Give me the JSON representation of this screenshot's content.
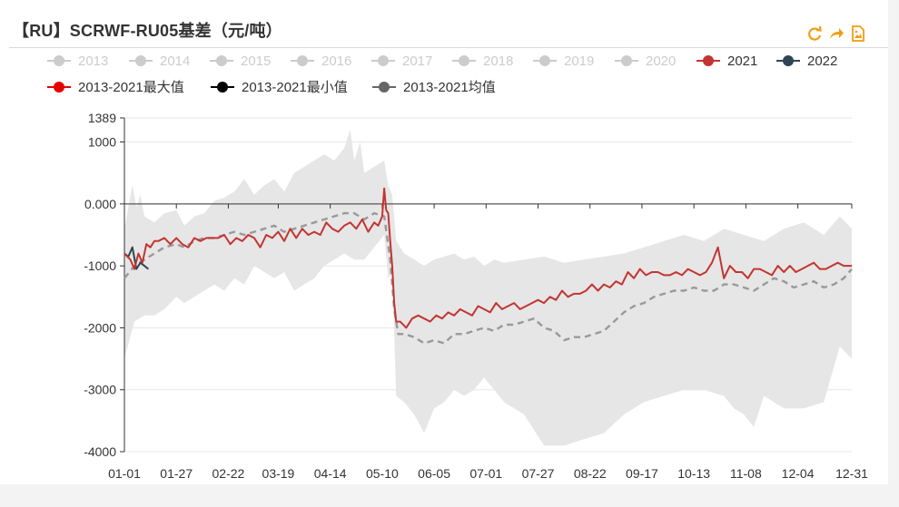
{
  "header": {
    "title": "【RU】SCRWF-RU05基差（元/吨）"
  },
  "toolbox": {
    "restore_icon": "refresh-icon",
    "data_view_icon": "share-arrow-icon",
    "save_icon": "save-image-icon",
    "color": "#f39c12"
  },
  "chart_data": {
    "type": "line",
    "title": "【RU】SCRWF-RU05基差（元/吨）",
    "xlabel": "",
    "ylabel": "",
    "ylim": [
      -4000,
      1389
    ],
    "yticks": [
      "1389",
      "1000",
      "0.000",
      "-1000",
      "-2000",
      "-3000",
      "-4000"
    ],
    "ytick_values": [
      1389,
      1000,
      0,
      -1000,
      -2000,
      -3000,
      -4000
    ],
    "xticks": [
      "01-01",
      "01-27",
      "02-22",
      "03-19",
      "04-14",
      "05-10",
      "06-05",
      "07-01",
      "07-27",
      "08-22",
      "09-17",
      "10-13",
      "11-08",
      "12-04",
      "12-31"
    ],
    "xtick_days": [
      0,
      26,
      52,
      77,
      103,
      129,
      155,
      181,
      207,
      233,
      259,
      285,
      311,
      337,
      364
    ],
    "grid": true,
    "legend_position": "top",
    "colors": {
      "inactive": "#cccccc",
      "s2021": "#c23531",
      "s2022": "#2f4554",
      "max": "#e60000",
      "min": "#000000",
      "mean": "#666666",
      "band": "#e6e6e6"
    },
    "legend": [
      {
        "name": "2013",
        "color": "#cccccc",
        "active": false
      },
      {
        "name": "2014",
        "color": "#cccccc",
        "active": false
      },
      {
        "name": "2015",
        "color": "#cccccc",
        "active": false
      },
      {
        "name": "2016",
        "color": "#cccccc",
        "active": false
      },
      {
        "name": "2017",
        "color": "#cccccc",
        "active": false
      },
      {
        "name": "2018",
        "color": "#cccccc",
        "active": false
      },
      {
        "name": "2019",
        "color": "#cccccc",
        "active": false
      },
      {
        "name": "2020",
        "color": "#cccccc",
        "active": false
      },
      {
        "name": "2021",
        "color": "#c23531",
        "active": true
      },
      {
        "name": "2022",
        "color": "#2f4554",
        "active": true
      },
      {
        "name": "2013-2021最大值",
        "color": "#e60000",
        "active": true
      },
      {
        "name": "2013-2021最小值",
        "color": "#000000",
        "active": true
      },
      {
        "name": "2013-2021均值",
        "color": "#666666",
        "active": true
      }
    ],
    "band_upper": {
      "x": [
        0,
        4,
        6,
        8,
        10,
        15,
        20,
        26,
        30,
        35,
        40,
        45,
        50,
        55,
        60,
        65,
        70,
        75,
        80,
        85,
        90,
        95,
        100,
        105,
        110,
        113,
        115,
        118,
        120,
        125,
        130,
        132,
        134,
        136,
        140,
        145,
        150,
        155,
        160,
        165,
        170,
        175,
        180,
        185,
        190,
        200,
        210,
        220,
        230,
        240,
        250,
        260,
        270,
        280,
        290,
        300,
        310,
        320,
        330,
        340,
        350,
        358,
        364
      ],
      "values": [
        -400,
        300,
        -50,
        150,
        -200,
        -300,
        -150,
        -100,
        -350,
        -200,
        -150,
        50,
        100,
        200,
        400,
        150,
        300,
        400,
        200,
        500,
        600,
        700,
        800,
        700,
        900,
        1200,
        700,
        1000,
        500,
        600,
        700,
        300,
        150,
        -600,
        -800,
        -900,
        -1000,
        -900,
        -850,
        -800,
        -900,
        -850,
        -1000,
        -900,
        -950,
        -900,
        -850,
        -950,
        -900,
        -850,
        -800,
        -700,
        -600,
        -500,
        -600,
        -400,
        -500,
        -600,
        -400,
        -300,
        -500,
        -200,
        -400
      ]
    },
    "band_lower": {
      "x": [
        0,
        5,
        10,
        15,
        20,
        26,
        30,
        35,
        40,
        45,
        50,
        55,
        60,
        65,
        70,
        75,
        80,
        85,
        90,
        95,
        100,
        105,
        110,
        115,
        120,
        125,
        130,
        132,
        134,
        136,
        140,
        145,
        150,
        155,
        160,
        165,
        170,
        175,
        180,
        190,
        200,
        210,
        220,
        230,
        240,
        250,
        260,
        270,
        280,
        290,
        300,
        305,
        310,
        315,
        320,
        330,
        340,
        350,
        358,
        364
      ],
      "values": [
        -2500,
        -1900,
        -1800,
        -1800,
        -1700,
        -1500,
        -1600,
        -1500,
        -1400,
        -1300,
        -1400,
        -1200,
        -1300,
        -1000,
        -1100,
        -1200,
        -1100,
        -1400,
        -1300,
        -1200,
        -1000,
        -900,
        -800,
        -900,
        -900,
        -700,
        -500,
        -1200,
        -1100,
        -3100,
        -3200,
        -3400,
        -3700,
        -3300,
        -3200,
        -3000,
        -3100,
        -3000,
        -2800,
        -3200,
        -3400,
        -3900,
        -3900,
        -3800,
        -3700,
        -3400,
        -3200,
        -3100,
        -3000,
        -3000,
        -3100,
        -3300,
        -3400,
        -3600,
        -3100,
        -3300,
        -3300,
        -3200,
        -2300,
        -2500
      ]
    },
    "series": [
      {
        "name": "2021",
        "color": "#c23531",
        "x": [
          0,
          3,
          5,
          7,
          9,
          11,
          13,
          15,
          17,
          20,
          23,
          26,
          29,
          32,
          35,
          38,
          41,
          44,
          47,
          50,
          53,
          56,
          59,
          62,
          65,
          68,
          71,
          74,
          77,
          80,
          83,
          86,
          89,
          92,
          95,
          98,
          101,
          104,
          107,
          110,
          113,
          116,
          119,
          122,
          125,
          127,
          129,
          130,
          131,
          132,
          133,
          134,
          135,
          136,
          138,
          141,
          144,
          147,
          150,
          153,
          156,
          159,
          162,
          165,
          168,
          171,
          174,
          177,
          180,
          183,
          186,
          189,
          192,
          195,
          198,
          201,
          204,
          207,
          210,
          213,
          216,
          219,
          222,
          225,
          228,
          231,
          234,
          237,
          240,
          243,
          246,
          249,
          252,
          255,
          258,
          261,
          264,
          267,
          270,
          273,
          276,
          279,
          282,
          285,
          288,
          291,
          294,
          297,
          300,
          303,
          306,
          309,
          312,
          315,
          318,
          321,
          324,
          327,
          330,
          333,
          336,
          339,
          342,
          345,
          348,
          351,
          354,
          357,
          360,
          364
        ],
        "values": [
          -800,
          -900,
          -1050,
          -800,
          -950,
          -650,
          -700,
          -600,
          -600,
          -550,
          -650,
          -550,
          -650,
          -700,
          -550,
          -600,
          -550,
          -550,
          -550,
          -500,
          -650,
          -550,
          -600,
          -500,
          -550,
          -700,
          -500,
          -550,
          -450,
          -600,
          -400,
          -550,
          -400,
          -500,
          -450,
          -500,
          -300,
          -400,
          -450,
          -350,
          -300,
          -400,
          -250,
          -450,
          -300,
          -350,
          -200,
          250,
          -100,
          -150,
          -600,
          -1000,
          -1600,
          -1900,
          -1900,
          -2000,
          -1850,
          -1800,
          -1850,
          -1900,
          -1800,
          -1850,
          -1750,
          -1800,
          -1700,
          -1750,
          -1800,
          -1650,
          -1700,
          -1750,
          -1600,
          -1700,
          -1650,
          -1600,
          -1700,
          -1650,
          -1600,
          -1550,
          -1600,
          -1500,
          -1550,
          -1400,
          -1500,
          -1450,
          -1450,
          -1400,
          -1300,
          -1400,
          -1300,
          -1350,
          -1250,
          -1300,
          -1100,
          -1200,
          -1050,
          -1150,
          -1100,
          -1100,
          -1150,
          -1150,
          -1100,
          -1150,
          -1050,
          -1100,
          -1150,
          -1100,
          -950,
          -700,
          -1200,
          -1000,
          -1100,
          -1100,
          -1200,
          -1050,
          -1050,
          -1100,
          -1150,
          -1000,
          -1100,
          -1000,
          -1100,
          -1050,
          -1000,
          -950,
          -1050,
          -1050,
          -1000,
          -950,
          -1000,
          -1000
        ]
      },
      {
        "name": "2022",
        "color": "#2f4554",
        "x": [
          0,
          2,
          4,
          6,
          8,
          10,
          12
        ],
        "values": [
          -800,
          -850,
          -700,
          -1050,
          -950,
          -1000,
          -1050
        ]
      },
      {
        "name": "2013-2021均值",
        "color": "#999999",
        "x": [
          0,
          5,
          10,
          15,
          20,
          26,
          30,
          35,
          40,
          45,
          50,
          55,
          60,
          65,
          70,
          75,
          80,
          85,
          90,
          95,
          100,
          105,
          110,
          115,
          120,
          125,
          130,
          133,
          135,
          137,
          140,
          145,
          150,
          155,
          160,
          165,
          170,
          175,
          180,
          185,
          190,
          195,
          200,
          205,
          210,
          215,
          220,
          225,
          230,
          235,
          240,
          245,
          250,
          255,
          260,
          265,
          270,
          275,
          280,
          285,
          290,
          295,
          300,
          305,
          310,
          315,
          320,
          325,
          330,
          335,
          340,
          345,
          350,
          355,
          360,
          364
        ],
        "values": [
          -1200,
          -1000,
          -900,
          -800,
          -700,
          -650,
          -700,
          -600,
          -550,
          -550,
          -500,
          -450,
          -500,
          -450,
          -400,
          -350,
          -450,
          -400,
          -350,
          -300,
          -250,
          -200,
          -150,
          -150,
          -250,
          -150,
          -200,
          -900,
          -1700,
          -2100,
          -2100,
          -2150,
          -2250,
          -2200,
          -2250,
          -2100,
          -2100,
          -2050,
          -2000,
          -2050,
          -1950,
          -1950,
          -1900,
          -1850,
          -2000,
          -2050,
          -2200,
          -2150,
          -2150,
          -2100,
          -2050,
          -1900,
          -1750,
          -1650,
          -1600,
          -1500,
          -1450,
          -1400,
          -1400,
          -1350,
          -1400,
          -1400,
          -1300,
          -1300,
          -1350,
          -1400,
          -1300,
          -1200,
          -1250,
          -1350,
          -1300,
          -1250,
          -1350,
          -1300,
          -1200,
          -1050
        ]
      }
    ]
  }
}
